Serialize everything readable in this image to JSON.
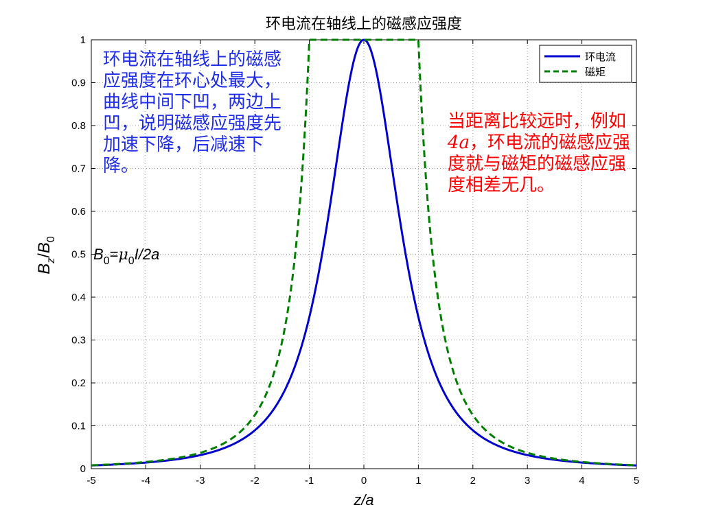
{
  "colors": {
    "ring_current": "#0000cc",
    "magnetic_moment": "#007f00",
    "left_note": "#1f2ee8",
    "right_note": "#ff0000",
    "grid": "#9a9a9a"
  },
  "chart_data": {
    "type": "line",
    "title": "环电流在轴线上的磁感应强度",
    "xlabel": "z/a",
    "ylabel": "Bz/B0",
    "xlim": [
      -5,
      5
    ],
    "ylim": [
      0,
      1
    ],
    "xticks": [
      -5,
      -4,
      -3,
      -2,
      -1,
      0,
      1,
      2,
      3,
      4,
      5
    ],
    "yticks": [
      0,
      0.1,
      0.2,
      0.3,
      0.4,
      0.5,
      0.6,
      0.7,
      0.8,
      0.9,
      1
    ],
    "grid": true,
    "legend_position": "top-right",
    "series": [
      {
        "name": "环电流",
        "style": "solid",
        "color": "#0000cc",
        "x": [
          -5,
          -4.5,
          -4,
          -3.5,
          -3,
          -2.5,
          -2,
          -1.75,
          -1.5,
          -1.25,
          -1,
          -0.75,
          -0.5,
          -0.25,
          0,
          0.25,
          0.5,
          0.75,
          1,
          1.25,
          1.5,
          1.75,
          2,
          2.5,
          3,
          3.5,
          4,
          4.5,
          5
        ],
        "y": [
          0.0075,
          0.01,
          0.0143,
          0.0212,
          0.0316,
          0.0508,
          0.0894,
          0.1207,
          0.1706,
          0.251,
          0.3536,
          0.512,
          0.7155,
          0.9131,
          1.0,
          0.9131,
          0.7155,
          0.512,
          0.3536,
          0.251,
          0.1706,
          0.1207,
          0.0894,
          0.0508,
          0.0316,
          0.0212,
          0.0143,
          0.01,
          0.0075
        ]
      },
      {
        "name": "磁矩",
        "style": "dashed",
        "color": "#007f00",
        "x": [
          -5,
          -4.5,
          -4,
          -3.5,
          -3,
          -2.5,
          -2,
          -1.75,
          -1.5,
          -1.25,
          -1,
          -0.75,
          -0.5,
          -0.25,
          0,
          0.25,
          0.5,
          0.75,
          1,
          1.25,
          1.5,
          1.75,
          2,
          2.5,
          3,
          3.5,
          4,
          4.5,
          5
        ],
        "y": [
          0.008,
          0.011,
          0.0156,
          0.0233,
          0.037,
          0.064,
          0.125,
          0.1866,
          0.2963,
          0.512,
          1.0,
          1.0,
          1.0,
          1.0,
          1.0,
          1.0,
          1.0,
          1.0,
          1.0,
          0.512,
          0.2963,
          0.1866,
          0.125,
          0.064,
          0.037,
          0.0233,
          0.0156,
          0.011,
          0.008
        ]
      }
    ],
    "annotations": {
      "formula_parts": [
        "B",
        "0",
        "=",
        "μ",
        "0",
        "I/2a"
      ],
      "left_note": "环电流在轴线上的磁感应强度在环心处最大，曲线中间下凹，两边上凹，说明磁感应强度先加速下降，后减速下降。",
      "right_note_parts": [
        "当距离比较远时，例如",
        "4a",
        "，环电流的磁感应强度就与磁矩的磁感应强度相差无几。"
      ]
    }
  }
}
